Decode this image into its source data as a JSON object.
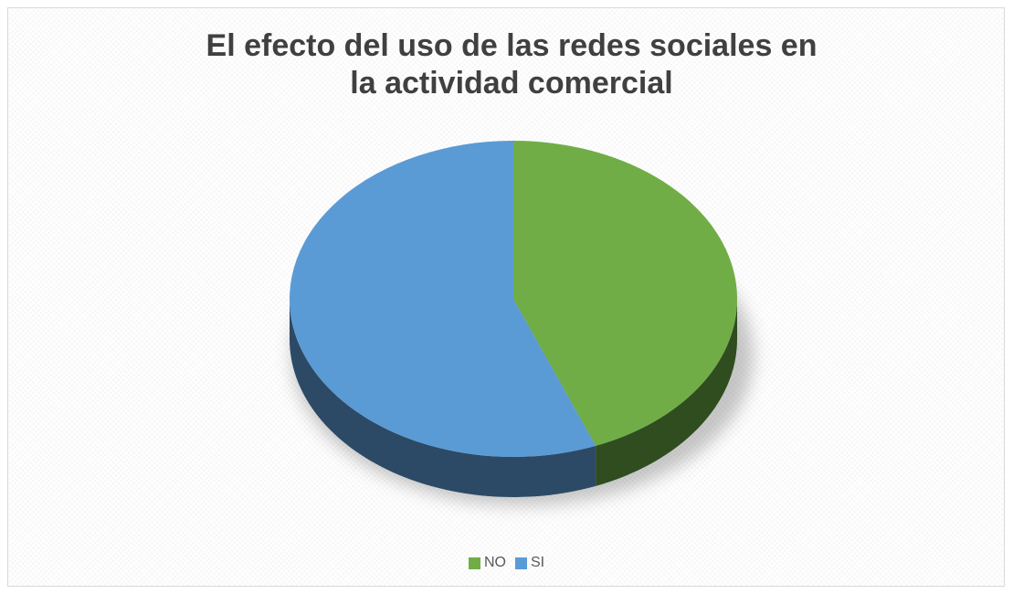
{
  "chart_data": {
    "type": "pie",
    "title_lines": [
      "El efecto del uso de las redes sociales en",
      "la actividad comercial"
    ],
    "slices": [
      {
        "label": "NO",
        "value": 44,
        "color": "#70ad47",
        "side_color": "#2f4d1f"
      },
      {
        "label": "SI",
        "value": 56,
        "color": "#5b9bd5",
        "side_color": "#2c4a66"
      }
    ],
    "legend_position": "bottom",
    "style": "3d"
  }
}
